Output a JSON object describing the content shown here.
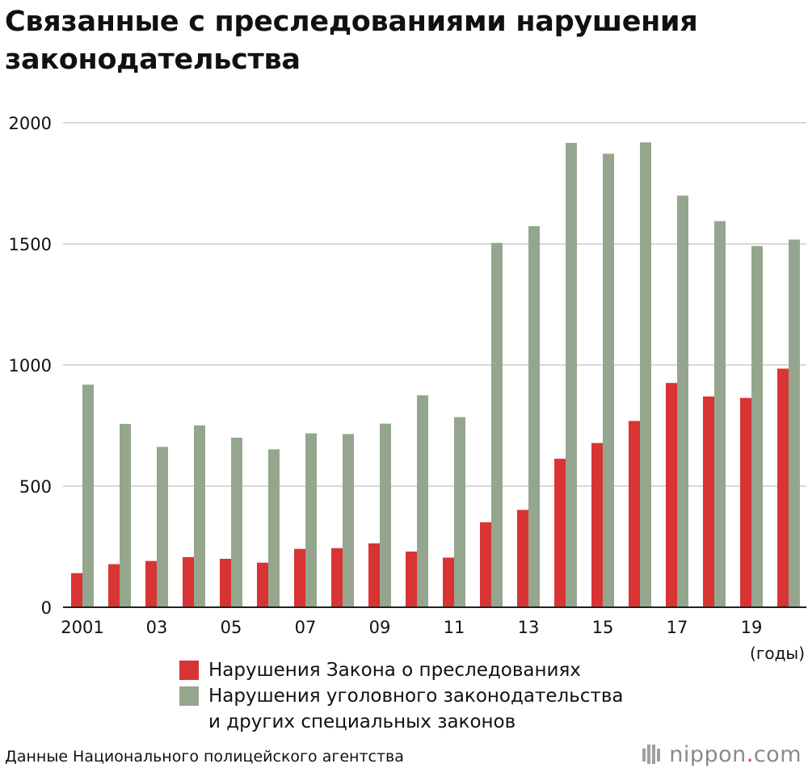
{
  "title": "Связанные с преследованиями нарушения законодательства",
  "colors": {
    "series_stalking": "#d93434",
    "series_criminal": "#94a78e",
    "grid": "#cccccc",
    "axis": "#222222"
  },
  "chart_data": {
    "type": "bar",
    "title": "Связанные с преследованиями нарушения законодательства",
    "xlabel": "",
    "ylabel": "",
    "x_unit_label": "(годы)",
    "ylim": [
      0,
      2000
    ],
    "yticks": [
      0,
      500,
      1000,
      1500,
      2000
    ],
    "categories": [
      "2001",
      "02",
      "03",
      "04",
      "05",
      "06",
      "07",
      "08",
      "09",
      "10",
      "11",
      "12",
      "13",
      "14",
      "15",
      "16",
      "17",
      "18",
      "19",
      "20"
    ],
    "xtick_labels": [
      "2001",
      "",
      "03",
      "",
      "05",
      "",
      "07",
      "",
      "09",
      "",
      "11",
      "",
      "13",
      "",
      "15",
      "",
      "17",
      "",
      "19",
      ""
    ],
    "series": [
      {
        "name": "Нарушения Закона о преследованиях",
        "color": "#d93434",
        "values": [
          141,
          178,
          191,
          207,
          200,
          184,
          241,
          244,
          264,
          230,
          205,
          351,
          402,
          613,
          678,
          769,
          926,
          870,
          864,
          985
        ]
      },
      {
        "name": "Нарушения уголовного законодательства и других специальных законов",
        "color": "#94a78e",
        "values": [
          919,
          757,
          662,
          751,
          700,
          652,
          718,
          715,
          758,
          875,
          785,
          1504,
          1573,
          1917,
          1872,
          1919,
          1699,
          1594,
          1491,
          1518
        ]
      }
    ],
    "legend_position": "bottom"
  },
  "legend": {
    "item1": "Нарушения Закона о преследованиях",
    "item2_line1": "Нарушения уголовного законодательства",
    "item2_line2": "и других специальных законов"
  },
  "source": "Данные Национального полицейского агентства",
  "logo": {
    "name": "nippon",
    "dot": ".",
    "suffix": "com"
  }
}
